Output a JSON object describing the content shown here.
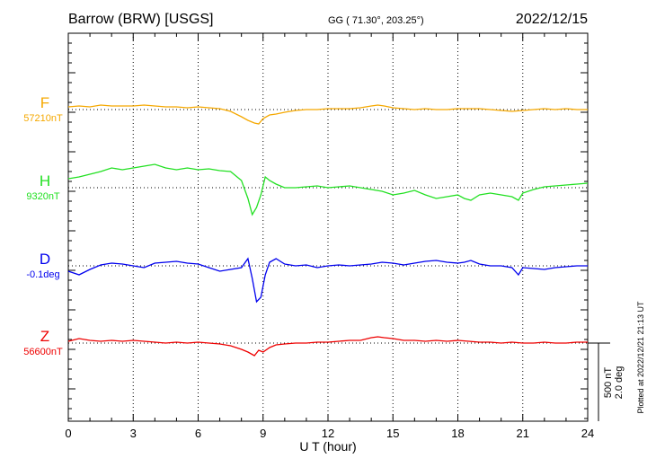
{
  "header": {
    "station": "Barrow (BRW)  [USGS]",
    "coords": "GG ( 71.30°, 203.25°)",
    "date": "2022/12/15"
  },
  "footer": {
    "plotted": "Plotted at 2022/12/21 21:13 UT"
  },
  "scale_bar": {
    "nt_label": "500 nT",
    "deg_label": "2.0 deg"
  },
  "chart_data": {
    "type": "line",
    "xlabel": "U T (hour)",
    "xlim": [
      0,
      24
    ],
    "xticks": [
      "0",
      "3",
      "6",
      "9",
      "12",
      "15",
      "18",
      "21",
      "24"
    ],
    "grid": "dotted vertical every 3 hours",
    "series": [
      {
        "name": "F",
        "baseline_label": "57210nT",
        "color": "#f5a800",
        "x": [
          0,
          0.5,
          1,
          1.5,
          2,
          2.5,
          3,
          3.5,
          4,
          4.5,
          5,
          5.5,
          6,
          6.5,
          7,
          7.5,
          8,
          8.3,
          8.6,
          8.8,
          9,
          9.3,
          9.6,
          10,
          10.5,
          11,
          11.5,
          12,
          12.5,
          13,
          13.5,
          14,
          14.3,
          14.6,
          15,
          15.5,
          16,
          16.5,
          17,
          17.5,
          18,
          18.5,
          19,
          19.5,
          20,
          20.5,
          21,
          21.5,
          22,
          22.5,
          23,
          23.5,
          24
        ],
        "values": [
          -3,
          -4,
          -3,
          -5,
          -4,
          -4,
          -4,
          -5,
          -4,
          -3,
          -3,
          -2,
          -3,
          -2,
          -1,
          2,
          8,
          12,
          15,
          16,
          10,
          6,
          5,
          3,
          1,
          0,
          0,
          -1,
          -1,
          -1,
          -2,
          -4,
          -5,
          -4,
          -2,
          -1,
          0,
          -1,
          0,
          0,
          -1,
          -1,
          -1,
          0,
          1,
          2,
          1,
          0,
          -1,
          0,
          -1,
          0,
          0
        ]
      },
      {
        "name": "H",
        "baseline_label": "9320nT",
        "color": "#22e022",
        "x": [
          0,
          0.5,
          1,
          1.5,
          2,
          2.5,
          3,
          3.5,
          4,
          4.5,
          5,
          5.5,
          6,
          6.5,
          7,
          7.5,
          8,
          8.3,
          8.5,
          8.7,
          8.9,
          9.1,
          9.3,
          9.6,
          10,
          10.5,
          11,
          11.5,
          12,
          12.5,
          13,
          13.5,
          14,
          14.5,
          15,
          15.5,
          16,
          16.5,
          17,
          17.5,
          18,
          18.3,
          18.6,
          19,
          19.5,
          20,
          20.5,
          20.8,
          21,
          21.5,
          22,
          22.5,
          23,
          23.5,
          24
        ],
        "values": [
          -10,
          -12,
          -15,
          -18,
          -22,
          -20,
          -22,
          -24,
          -26,
          -22,
          -20,
          -22,
          -20,
          -21,
          -19,
          -18,
          -8,
          12,
          30,
          22,
          8,
          -12,
          -8,
          -4,
          0,
          0,
          -1,
          -2,
          0,
          -1,
          -2,
          0,
          2,
          4,
          8,
          6,
          3,
          8,
          12,
          10,
          8,
          12,
          14,
          8,
          6,
          8,
          10,
          14,
          6,
          2,
          -1,
          -2,
          -3,
          -4,
          -5
        ]
      },
      {
        "name": "D",
        "baseline_label": "-0.1deg",
        "color": "#0000ee",
        "x": [
          0,
          0.5,
          1,
          1.5,
          2,
          2.5,
          3,
          3.5,
          4,
          4.5,
          5,
          5.5,
          6,
          6.5,
          7,
          7.5,
          8,
          8.3,
          8.5,
          8.7,
          8.9,
          9.1,
          9.3,
          9.6,
          10,
          10.5,
          11,
          11.5,
          12,
          12.5,
          13,
          13.5,
          14,
          14.5,
          15,
          15.5,
          16,
          16.5,
          17,
          17.5,
          18,
          18.3,
          18.6,
          19,
          19.5,
          20,
          20.5,
          20.8,
          21,
          21.5,
          22,
          22.5,
          23,
          23.5,
          24
        ],
        "values": [
          6,
          10,
          4,
          -1,
          -3,
          -2,
          0,
          2,
          -3,
          -4,
          -5,
          -3,
          -2,
          2,
          6,
          4,
          2,
          -8,
          14,
          40,
          35,
          10,
          -4,
          -8,
          -2,
          0,
          -1,
          2,
          0,
          -1,
          0,
          -1,
          -2,
          -4,
          -3,
          -1,
          -3,
          -5,
          -6,
          -4,
          -3,
          -4,
          -6,
          -2,
          0,
          0,
          2,
          10,
          2,
          3,
          4,
          2,
          1,
          0,
          0
        ]
      },
      {
        "name": "Z",
        "baseline_label": "56600nT",
        "color": "#ee0000",
        "x": [
          0,
          0.5,
          1,
          1.5,
          2,
          2.5,
          3,
          3.5,
          4,
          4.5,
          5,
          5.5,
          6,
          6.5,
          7,
          7.5,
          8,
          8.3,
          8.6,
          8.8,
          9,
          9.3,
          9.6,
          10,
          10.5,
          11,
          11.5,
          12,
          12.5,
          13,
          13.5,
          14,
          14.3,
          14.6,
          15,
          15.5,
          16,
          16.5,
          17,
          17.5,
          18,
          18.5,
          19,
          19.5,
          20,
          20.5,
          21,
          21.5,
          22,
          22.5,
          23,
          23.5,
          24
        ],
        "values": [
          -2,
          -5,
          -3,
          -2,
          -3,
          -2,
          -3,
          -2,
          -1,
          0,
          -1,
          0,
          -1,
          0,
          1,
          3,
          7,
          10,
          14,
          8,
          10,
          5,
          2,
          1,
          0,
          0,
          -1,
          -1,
          -2,
          -3,
          -3,
          -6,
          -7,
          -6,
          -5,
          -3,
          -3,
          -2,
          -3,
          -2,
          -3,
          -2,
          -1,
          -1,
          0,
          -1,
          0,
          0,
          -1,
          0,
          0,
          -1,
          -1
        ]
      }
    ]
  }
}
